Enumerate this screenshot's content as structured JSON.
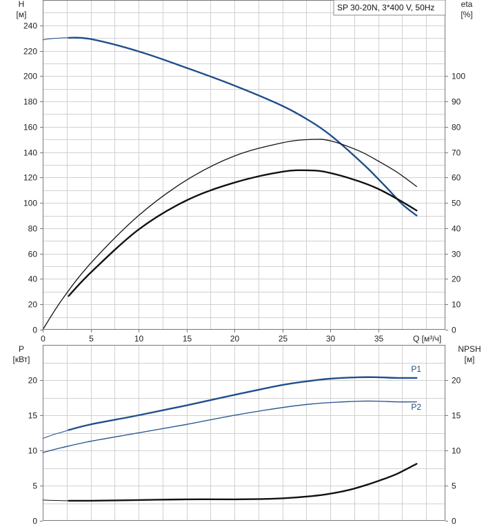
{
  "legend_title": "SP 30-20N, 3*400 V, 50Hz",
  "colors": {
    "blue": "#1f4e8c",
    "black": "#111111",
    "grid": "#d0d0d0"
  },
  "chart_data": [
    {
      "type": "line",
      "panel": "top",
      "xlabel": "Q [м³/ч]",
      "ylabel": "H\n[м]",
      "y2label": "eta\n[%]",
      "xlim": [
        0,
        42
      ],
      "ylim": [
        0,
        260
      ],
      "y2lim": [
        0,
        130
      ],
      "xticks": [
        0,
        5,
        10,
        15,
        20,
        25,
        30,
        35
      ],
      "yticks": [
        0,
        20,
        40,
        60,
        80,
        100,
        120,
        140,
        160,
        180,
        200,
        220,
        240
      ],
      "y2ticks": [
        0,
        10,
        20,
        30,
        40,
        50,
        60,
        70,
        80,
        90,
        100
      ],
      "grid": true,
      "series": [
        {
          "id": "H_thin",
          "axis": "y",
          "color": "#1f4e8c",
          "width": 1,
          "x": [
            0,
            1,
            2,
            2.7
          ],
          "y": [
            228.6,
            229.6,
            230.1,
            230.2
          ]
        },
        {
          "id": "H",
          "axis": "y",
          "color": "#1f4e8c",
          "width": 2.4,
          "x": [
            2.7,
            5,
            10,
            15,
            20,
            25,
            28,
            30,
            32,
            34,
            36,
            37.5,
            39
          ],
          "y": [
            230.2,
            229.2,
            219.5,
            206.5,
            192.5,
            176.5,
            164,
            153.5,
            140.5,
            126.5,
            111,
            99,
            90
          ]
        },
        {
          "id": "eta_pump",
          "axis": "y2",
          "color": "#111111",
          "width": 1.3,
          "x": [
            0,
            2,
            5,
            10,
            15,
            20,
            25,
            28,
            30,
            33,
            35,
            37,
            39
          ],
          "y": [
            0,
            11.8,
            26.2,
            45,
            59,
            68.5,
            73.7,
            75,
            74.5,
            70.5,
            66.5,
            62,
            56.5
          ]
        },
        {
          "id": "eta_total",
          "axis": "y2",
          "color": "#111111",
          "width": 2.4,
          "x": [
            2.7,
            5,
            10,
            15,
            20,
            25,
            28,
            30,
            33,
            35,
            37,
            39
          ],
          "y": [
            13.3,
            22.5,
            39.5,
            51,
            58,
            62.3,
            62.8,
            61.8,
            58.5,
            55.5,
            51.5,
            47
          ]
        }
      ]
    },
    {
      "type": "line",
      "panel": "bottom",
      "xlabel": "",
      "ylabel": "P\n[кВт]",
      "y2label": "NPSH\n[м]",
      "xlim": [
        0,
        42
      ],
      "ylim": [
        0,
        25
      ],
      "y2lim": [
        0,
        25
      ],
      "yticks": [
        0,
        5,
        10,
        15,
        20
      ],
      "y2ticks": [
        0,
        5,
        10,
        15,
        20
      ],
      "grid": true,
      "series": [
        {
          "id": "P1_thin",
          "axis": "y",
          "color": "#1f4e8c",
          "width": 1,
          "x": [
            0,
            1,
            2,
            2.7
          ],
          "y": [
            11.7,
            12.2,
            12.6,
            12.9
          ]
        },
        {
          "id": "P1",
          "name": "P1",
          "axis": "y",
          "color": "#1f4e8c",
          "width": 2.4,
          "x": [
            2.7,
            5,
            10,
            15,
            20,
            25,
            28,
            30,
            33,
            35,
            37,
            39
          ],
          "y": [
            12.9,
            13.7,
            15,
            16.4,
            17.9,
            19.3,
            19.9,
            20.2,
            20.4,
            20.4,
            20.3,
            20.3
          ]
        },
        {
          "id": "P2",
          "name": "P2",
          "axis": "y",
          "color": "#1f4e8c",
          "width": 1.3,
          "x": [
            0,
            2,
            5,
            10,
            15,
            20,
            25,
            28,
            30,
            33,
            35,
            37,
            39
          ],
          "y": [
            9.7,
            10.4,
            11.3,
            12.5,
            13.7,
            15,
            16.1,
            16.6,
            16.8,
            17,
            17,
            16.9,
            16.9
          ]
        },
        {
          "id": "NPSH_thin",
          "axis": "y2",
          "color": "#111111",
          "width": 1,
          "x": [
            0,
            1,
            2,
            2.7
          ],
          "y": [
            2.95,
            2.9,
            2.87,
            2.85
          ]
        },
        {
          "id": "NPSH",
          "axis": "y2",
          "color": "#111111",
          "width": 2.4,
          "x": [
            2.7,
            5,
            10,
            15,
            20,
            23,
            25,
            28,
            30,
            32,
            34,
            35.5,
            37,
            39
          ],
          "y": [
            2.85,
            2.85,
            2.95,
            3.05,
            3.05,
            3.1,
            3.2,
            3.5,
            3.85,
            4.4,
            5.2,
            5.9,
            6.7,
            8.1
          ]
        }
      ],
      "labels": [
        {
          "series": "P1",
          "text": "P1",
          "x": 38,
          "y": 21.2
        },
        {
          "series": "P2",
          "text": "P2",
          "x": 38,
          "y": 15.8
        }
      ]
    }
  ]
}
